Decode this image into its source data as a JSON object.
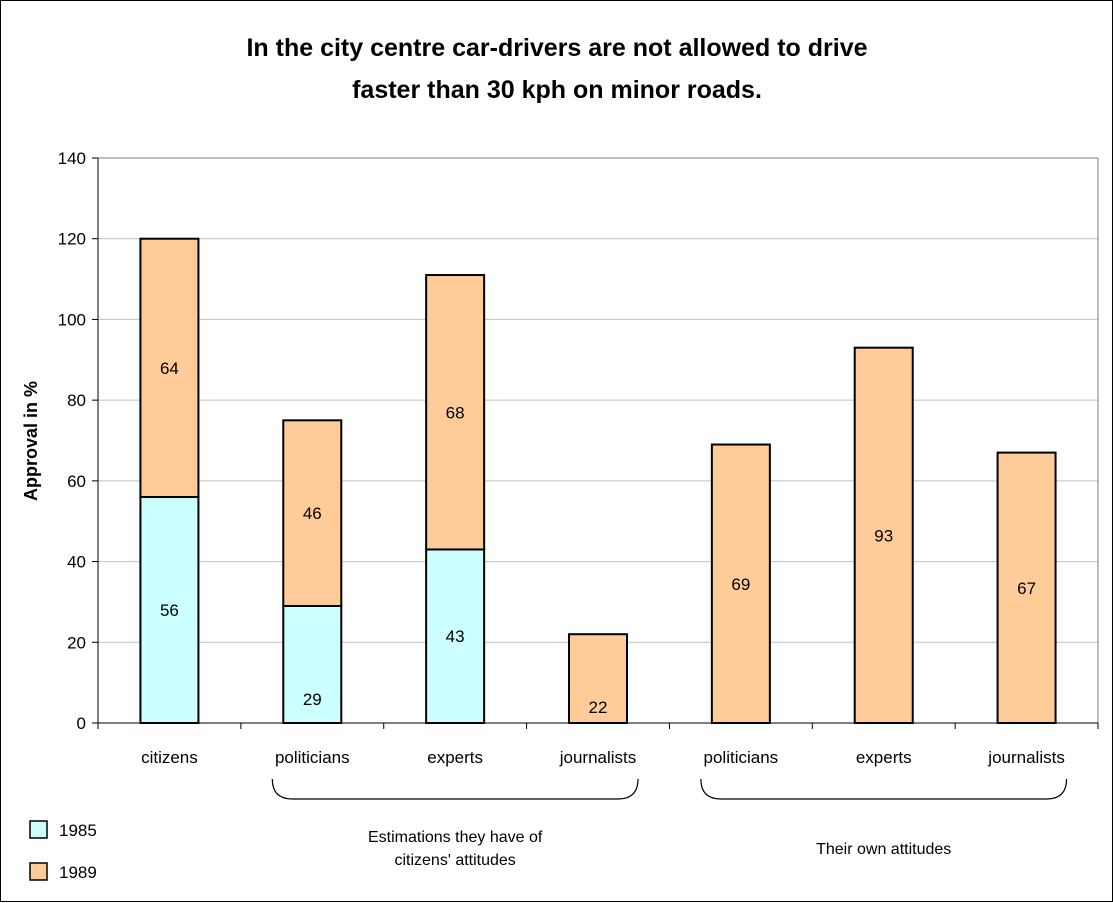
{
  "chart_data": {
    "type": "bar",
    "stacked": true,
    "title": [
      "In the city centre car-drivers are not allowed to drive",
      "faster than 30 kph on minor roads."
    ],
    "ylabel": "Approval in %",
    "xlabel": "",
    "ylim": [
      0,
      140
    ],
    "yticks": [
      0,
      20,
      40,
      60,
      80,
      100,
      120,
      140
    ],
    "grid": true,
    "categories": [
      "citizens",
      "politicians",
      "experts",
      "journalists",
      "politicians",
      "experts",
      "journalists"
    ],
    "series": [
      {
        "name": "1985",
        "color": "#ccffff",
        "values": [
          56,
          29,
          43,
          0,
          0,
          0,
          0
        ]
      },
      {
        "name": "1989",
        "color": "#ffcc99",
        "values": [
          64,
          46,
          68,
          22,
          69,
          93,
          67
        ]
      }
    ],
    "group_annotations": [
      {
        "categories": [
          1,
          3
        ],
        "label": [
          "Estimations they have of",
          "citizens' attitudes"
        ]
      },
      {
        "categories": [
          4,
          6
        ],
        "label": [
          "Their own attitudes"
        ]
      }
    ],
    "legend_placement": "bottom-left"
  }
}
